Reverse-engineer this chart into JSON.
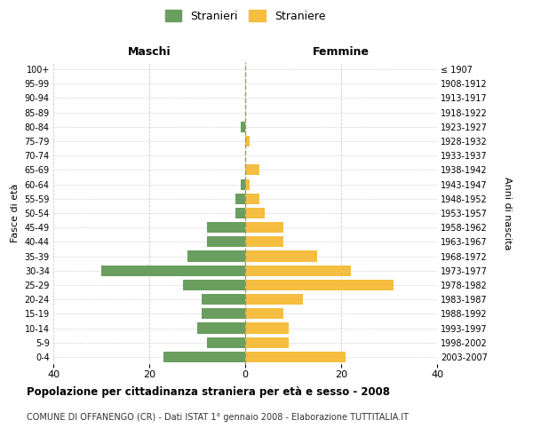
{
  "age_groups": [
    "0-4",
    "5-9",
    "10-14",
    "15-19",
    "20-24",
    "25-29",
    "30-34",
    "35-39",
    "40-44",
    "45-49",
    "50-54",
    "55-59",
    "60-64",
    "65-69",
    "70-74",
    "75-79",
    "80-84",
    "85-89",
    "90-94",
    "95-99",
    "100+"
  ],
  "birth_years": [
    "2003-2007",
    "1998-2002",
    "1993-1997",
    "1988-1992",
    "1983-1987",
    "1978-1982",
    "1973-1977",
    "1968-1972",
    "1963-1967",
    "1958-1962",
    "1953-1957",
    "1948-1952",
    "1943-1947",
    "1938-1942",
    "1933-1937",
    "1928-1932",
    "1923-1927",
    "1918-1922",
    "1913-1917",
    "1908-1912",
    "≤ 1907"
  ],
  "maschi": [
    17,
    8,
    10,
    9,
    9,
    13,
    30,
    12,
    8,
    8,
    2,
    2,
    1,
    0,
    0,
    0,
    1,
    0,
    0,
    0,
    0
  ],
  "femmine": [
    21,
    9,
    9,
    8,
    12,
    31,
    22,
    15,
    8,
    8,
    4,
    3,
    1,
    3,
    0,
    1,
    0,
    0,
    0,
    0,
    0
  ],
  "color_maschi": "#6a9e5e",
  "color_femmine": "#f5be41",
  "background_color": "#ffffff",
  "grid_color": "#cccccc",
  "title": "Popolazione per cittadinanza straniera per età e sesso - 2008",
  "subtitle": "COMUNE DI OFFANENGO (CR) - Dati ISTAT 1° gennaio 2008 - Elaborazione TUTTITALIA.IT",
  "xlabel_left": "Maschi",
  "xlabel_right": "Femmine",
  "ylabel_left": "Fasce di età",
  "ylabel_right": "Anni di nascita",
  "legend_stranieri": "Stranieri",
  "legend_straniere": "Straniere",
  "xlim": 40
}
